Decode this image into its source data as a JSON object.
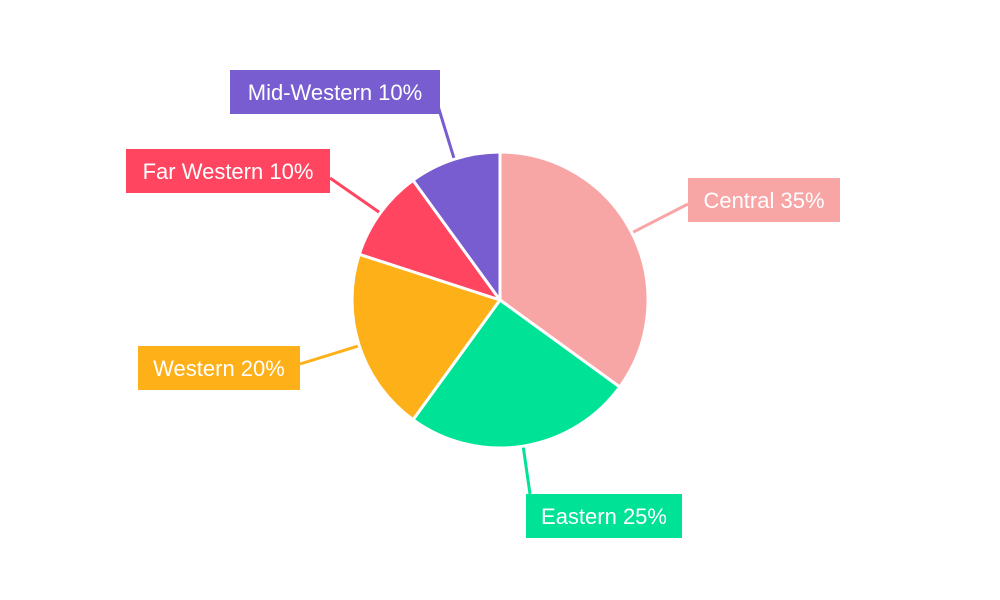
{
  "chart_data": {
    "type": "pie",
    "title": "",
    "slices": [
      {
        "label": "Central",
        "value": 35,
        "text": "Central 35%",
        "color": "#f8a5a5"
      },
      {
        "label": "Eastern",
        "value": 25,
        "text": "Eastern 25%",
        "color": "#00e396"
      },
      {
        "label": "Western",
        "value": 20,
        "text": "Western 20%",
        "color": "#feb019"
      },
      {
        "label": "Far Western",
        "value": 10,
        "text": "Far Western 10%",
        "color": "#ff4560"
      },
      {
        "label": "Mid-Western",
        "value": 10,
        "text": "Mid-Western 10%",
        "color": "#775dd0"
      }
    ],
    "start_angle_deg": 0,
    "direction": "clockwise",
    "legend": "none",
    "label_style": "callout"
  }
}
